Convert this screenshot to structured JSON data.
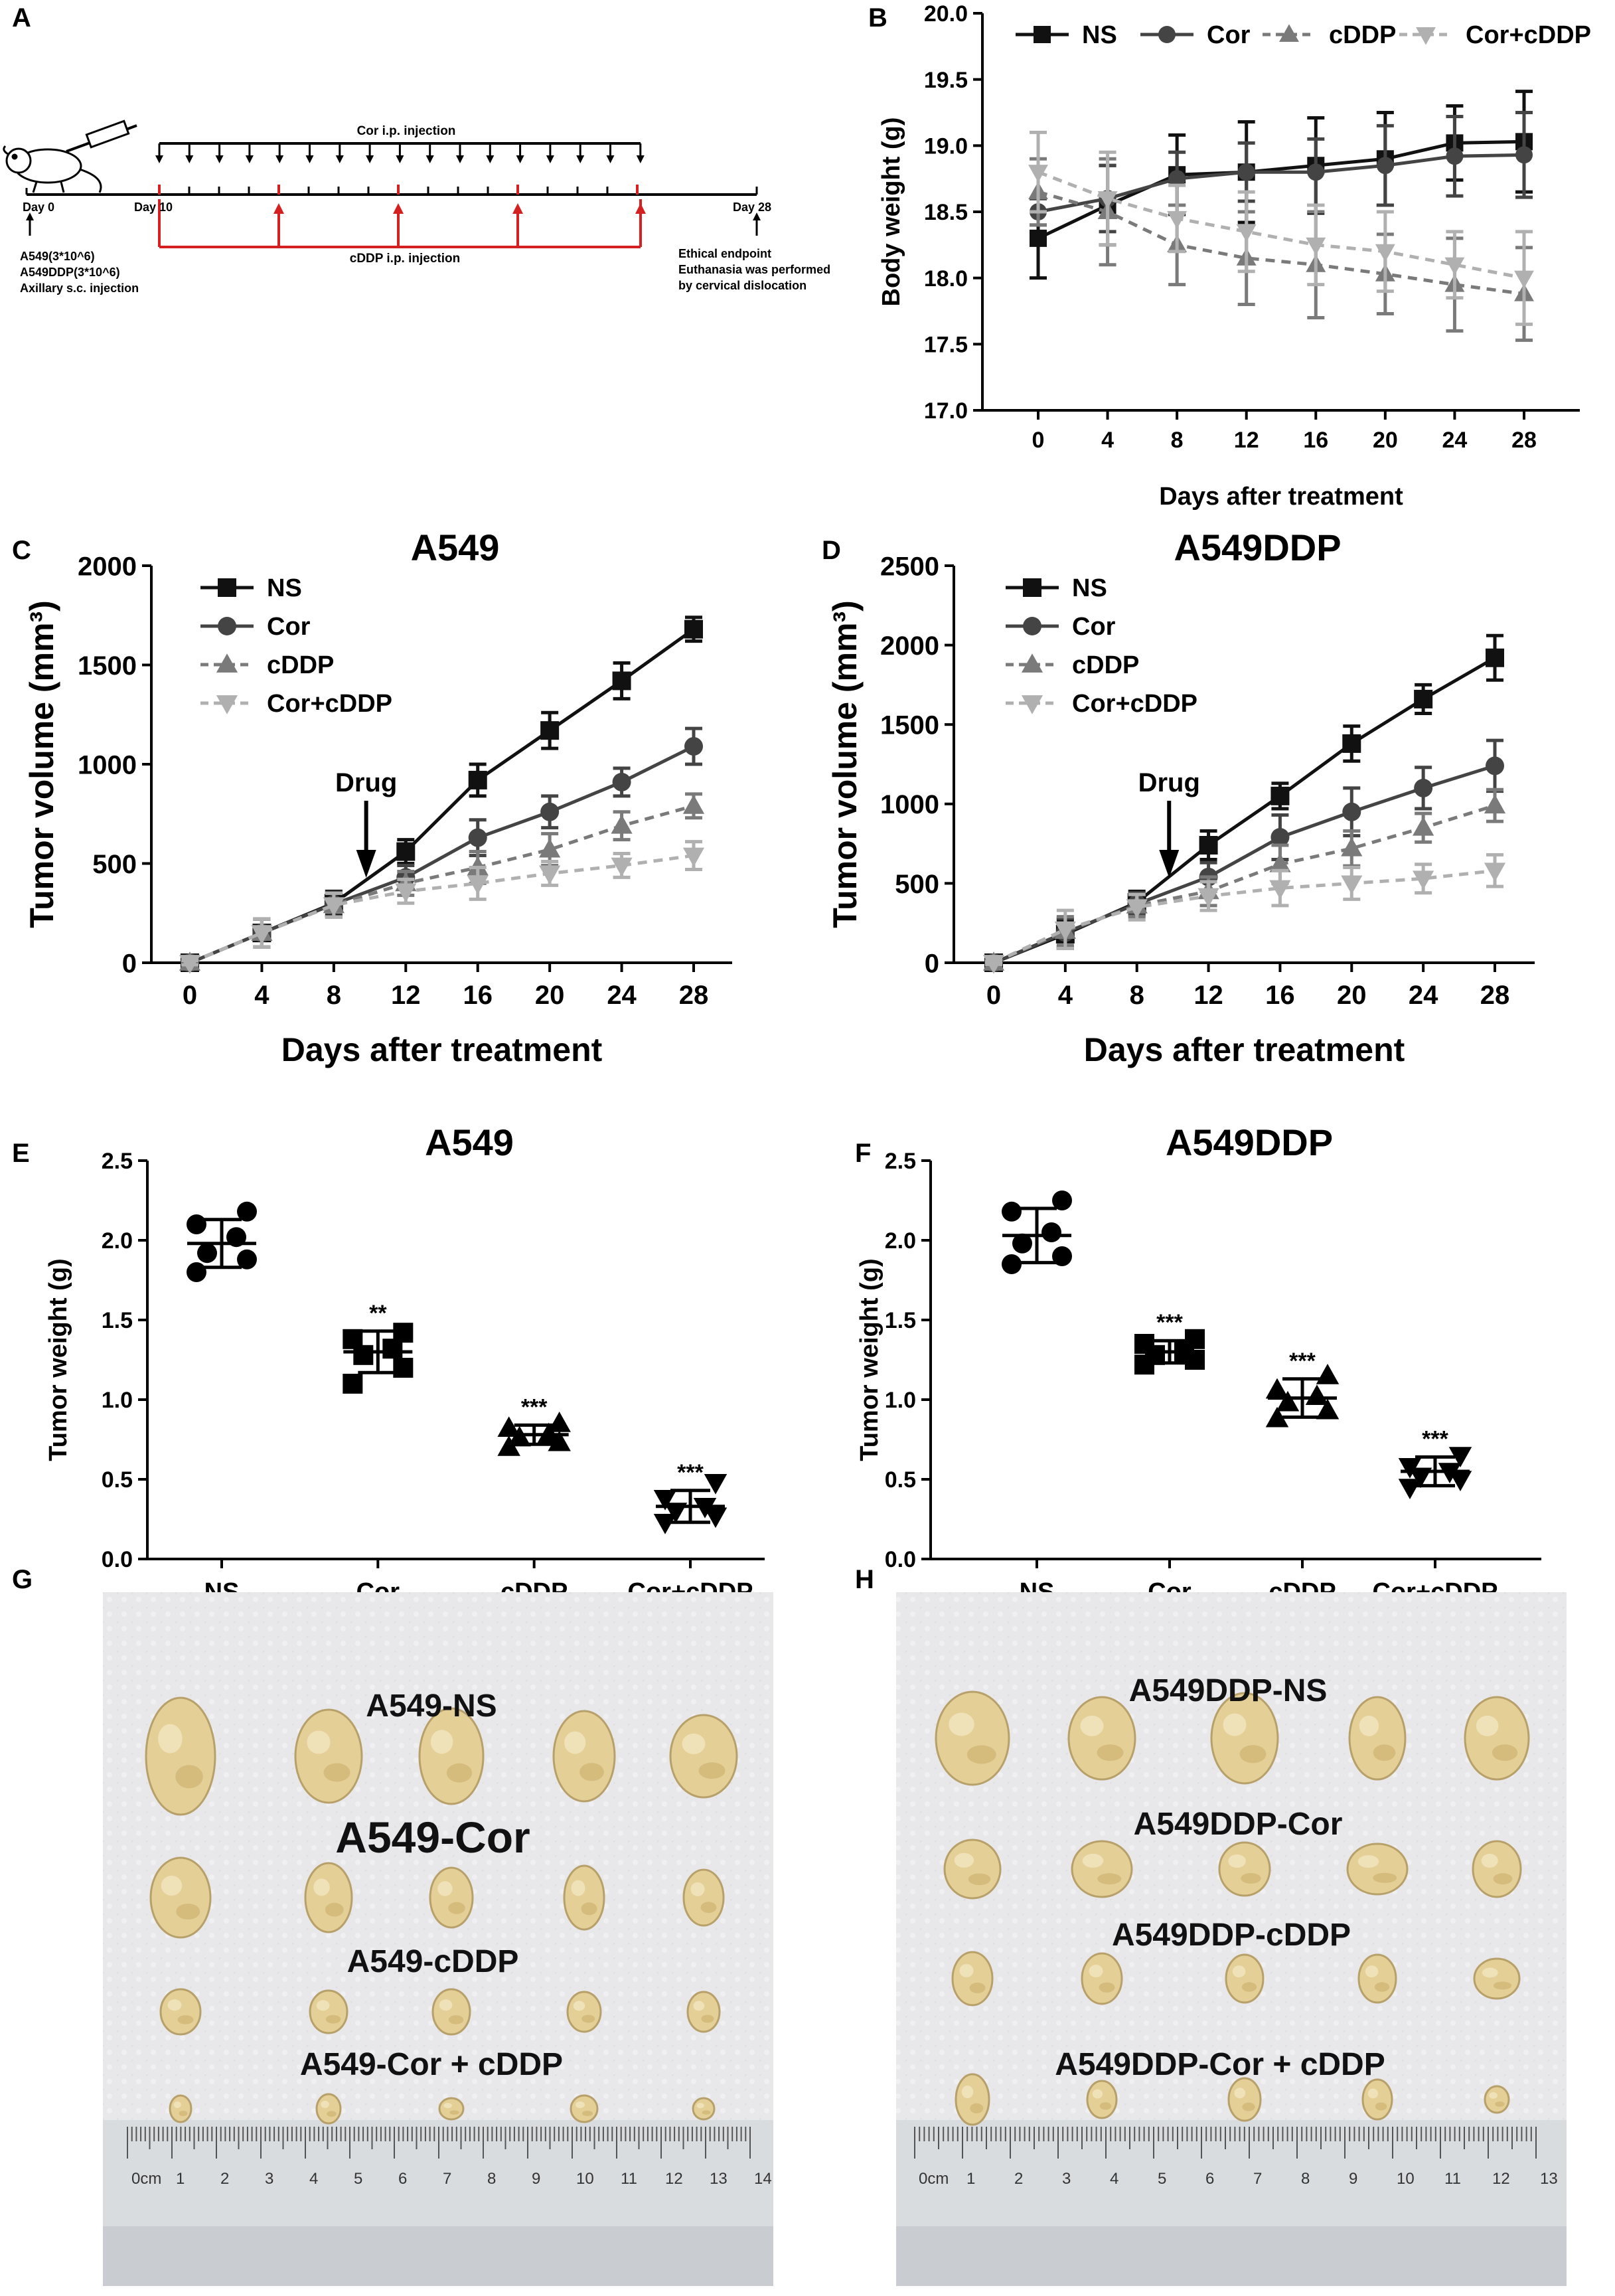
{
  "panels": {
    "A": {
      "label": "A",
      "cor_injection": "Cor i.p. injection",
      "cddp_injection": "cDDP i.p. injection",
      "day0": "Day 0",
      "day10": "Day 10",
      "day28": "Day 28",
      "inoculation": [
        "A549(3*10^6)",
        "A549DDP(3*10^6)",
        "Axillary s.c. injection"
      ],
      "endpoint": [
        "Ethical endpoint",
        "Euthanasia was performed",
        "by cervical dislocation"
      ]
    },
    "B": {
      "label": "B"
    },
    "C": {
      "label": "C"
    },
    "D": {
      "label": "D"
    },
    "E": {
      "label": "E"
    },
    "F": {
      "label": "F"
    },
    "G": {
      "label": "G"
    },
    "H": {
      "label": "H"
    }
  },
  "photos": {
    "G": {
      "row_labels": [
        "A549-NS",
        "A549-Cor",
        "A549-cDDP",
        "A549-Cor + cDDP"
      ],
      "ruler_ticks": [
        "0cm",
        "1",
        "2",
        "3",
        "4",
        "5",
        "6",
        "7",
        "8",
        "9",
        "10",
        "11",
        "12",
        "13",
        "14"
      ]
    },
    "H": {
      "row_labels": [
        "A549DDP-NS",
        "A549DDP-Cor",
        "A549DDP-cDDP",
        "A549DDP-Cor + cDDP"
      ],
      "ruler_ticks": [
        "0cm",
        "1",
        "2",
        "3",
        "4",
        "5",
        "6",
        "7",
        "8",
        "9",
        "10",
        "11",
        "12",
        "13"
      ]
    }
  },
  "colors": {
    "NS": "#111111",
    "Cor": "#444444",
    "cDDP": "#7a7a7a",
    "Cor+cDDP": "#b0b0b0",
    "timeline_black": "#000000",
    "timeline_red": "#d42020",
    "photo_bg": "#e9e9ec",
    "tumor": "#e4cf96"
  },
  "chart_data": [
    {
      "id": "B",
      "type": "line",
      "title": "",
      "xlabel": "Days after treatment",
      "ylabel": "Body weight (g)",
      "x": [
        0,
        4,
        8,
        12,
        16,
        20,
        24,
        28
      ],
      "ylim": [
        17.0,
        20.0
      ],
      "yticks": [
        17.0,
        17.5,
        18.0,
        18.5,
        19.0,
        19.5,
        20.0
      ],
      "ytick_labels": [
        "17.0",
        "17.5",
        "18.0",
        "18.5",
        "19.0",
        "19.5",
        "20.0"
      ],
      "legend": [
        "NS",
        "Cor",
        "cDDP",
        "Cor+cDDP"
      ],
      "legend_position": "top",
      "series": [
        {
          "name": "NS",
          "values": [
            18.3,
            18.55,
            18.78,
            18.8,
            18.85,
            18.9,
            19.02,
            19.03
          ],
          "errors": [
            0.3,
            0.3,
            0.3,
            0.38,
            0.36,
            0.35,
            0.28,
            0.38
          ]
        },
        {
          "name": "Cor",
          "values": [
            18.5,
            18.6,
            18.75,
            18.8,
            18.8,
            18.85,
            18.92,
            18.93
          ],
          "errors": [
            0.1,
            0.25,
            0.2,
            0.22,
            0.25,
            0.3,
            0.3,
            0.32
          ]
        },
        {
          "name": "cDDP",
          "values": [
            18.65,
            18.5,
            18.25,
            18.15,
            18.1,
            18.03,
            17.95,
            17.88
          ],
          "errors": [
            0.25,
            0.4,
            0.3,
            0.35,
            0.4,
            0.3,
            0.35,
            0.35
          ]
        },
        {
          "name": "Cor+cDDP",
          "values": [
            18.8,
            18.6,
            18.45,
            18.35,
            18.25,
            18.2,
            18.1,
            18.0
          ],
          "errors": [
            0.3,
            0.35,
            0.25,
            0.3,
            0.3,
            0.3,
            0.25,
            0.35
          ]
        }
      ]
    },
    {
      "id": "C",
      "type": "line",
      "title": "A549",
      "xlabel": "Days after treatment",
      "ylabel": "Tumor volume (mm³)",
      "x": [
        0,
        4,
        8,
        12,
        16,
        20,
        24,
        28
      ],
      "ylim": [
        0,
        2000
      ],
      "yticks": [
        0,
        500,
        1000,
        1500,
        2000
      ],
      "ytick_labels": [
        "0",
        "500",
        "1000",
        "1500",
        "2000"
      ],
      "annotation": "Drug",
      "annotation_x": 9.8,
      "legend": [
        "NS",
        "Cor",
        "cDDP",
        "Cor+cDDP"
      ],
      "legend_position": "top-left",
      "series": [
        {
          "name": "NS",
          "values": [
            0,
            150,
            300,
            560,
            920,
            1170,
            1420,
            1680
          ],
          "errors": [
            10,
            70,
            60,
            60,
            80,
            90,
            90,
            60
          ]
        },
        {
          "name": "Cor",
          "values": [
            0,
            150,
            295,
            430,
            630,
            760,
            910,
            1090
          ],
          "errors": [
            10,
            70,
            60,
            60,
            90,
            80,
            70,
            90
          ]
        },
        {
          "name": "cDDP",
          "values": [
            0,
            150,
            290,
            400,
            480,
            570,
            690,
            790
          ],
          "errors": [
            10,
            70,
            60,
            60,
            80,
            80,
            70,
            60
          ]
        },
        {
          "name": "Cor+cDDP",
          "values": [
            0,
            150,
            290,
            360,
            400,
            450,
            490,
            540
          ],
          "errors": [
            10,
            70,
            60,
            60,
            80,
            60,
            60,
            70
          ]
        }
      ]
    },
    {
      "id": "D",
      "type": "line",
      "title": "A549DDP",
      "xlabel": "Days after treatment",
      "ylabel": "Tumor volume (mm³)",
      "x": [
        0,
        4,
        8,
        12,
        16,
        20,
        24,
        28
      ],
      "ylim": [
        0,
        2500
      ],
      "yticks": [
        0,
        500,
        1000,
        1500,
        2000,
        2500
      ],
      "ytick_labels": [
        "0",
        "500",
        "1000",
        "1500",
        "2000",
        "2500"
      ],
      "annotation": "Drug",
      "annotation_x": 9.8,
      "legend": [
        "NS",
        "Cor",
        "cDDP",
        "Cor+cDDP"
      ],
      "legend_position": "top-left",
      "series": [
        {
          "name": "NS",
          "values": [
            0,
            180,
            380,
            740,
            1050,
            1380,
            1660,
            1920
          ],
          "errors": [
            10,
            90,
            70,
            90,
            80,
            110,
            90,
            140
          ]
        },
        {
          "name": "Cor",
          "values": [
            0,
            190,
            370,
            540,
            790,
            950,
            1100,
            1240
          ],
          "errors": [
            10,
            90,
            70,
            90,
            140,
            150,
            130,
            160
          ]
        },
        {
          "name": "cDDP",
          "values": [
            0,
            200,
            360,
            450,
            620,
            720,
            850,
            990
          ],
          "errors": [
            10,
            90,
            70,
            90,
            120,
            110,
            90,
            100
          ]
        },
        {
          "name": "Cor+cDDP",
          "values": [
            0,
            210,
            350,
            420,
            470,
            500,
            530,
            580
          ],
          "errors": [
            10,
            120,
            80,
            90,
            110,
            100,
            90,
            100
          ]
        }
      ]
    },
    {
      "id": "E",
      "type": "scatter",
      "title": "A549",
      "xlabel": "",
      "ylabel": "Tumor weight (g)",
      "categories": [
        "NS",
        "Cor",
        "cDDP",
        "Cor+cDDP"
      ],
      "ylim": [
        0.0,
        2.5
      ],
      "yticks": [
        0.0,
        0.5,
        1.0,
        1.5,
        2.0,
        2.5
      ],
      "ytick_labels": [
        "0.0",
        "0.5",
        "1.0",
        "1.5",
        "2.0",
        "2.5"
      ],
      "groups": [
        {
          "name": "NS",
          "marker": "circle",
          "points": [
            1.8,
            1.88,
            1.92,
            2.02,
            2.1,
            2.18
          ],
          "mean": 1.98,
          "sd": 0.15,
          "sig": ""
        },
        {
          "name": "Cor",
          "marker": "square",
          "points": [
            1.1,
            1.2,
            1.28,
            1.32,
            1.38,
            1.42
          ],
          "mean": 1.3,
          "sd": 0.13,
          "sig": "**"
        },
        {
          "name": "cDDP",
          "marker": "triangle",
          "points": [
            0.7,
            0.73,
            0.76,
            0.78,
            0.82,
            0.85
          ],
          "mean": 0.78,
          "sd": 0.06,
          "sig": "***"
        },
        {
          "name": "Cor+cDDP",
          "marker": "triangle-down",
          "points": [
            0.23,
            0.27,
            0.3,
            0.33,
            0.38,
            0.48
          ],
          "mean": 0.33,
          "sd": 0.1,
          "sig": "***"
        }
      ]
    },
    {
      "id": "F",
      "type": "scatter",
      "title": "A549DDP",
      "xlabel": "",
      "ylabel": "Tumor weight (g)",
      "categories": [
        "NS",
        "Cor",
        "cDDP",
        "Cor+cDDP"
      ],
      "ylim": [
        0.0,
        2.5
      ],
      "yticks": [
        0.0,
        0.5,
        1.0,
        1.5,
        2.0,
        2.5
      ],
      "ytick_labels": [
        "0.0",
        "0.5",
        "1.0",
        "1.5",
        "2.0",
        "2.5"
      ],
      "groups": [
        {
          "name": "NS",
          "marker": "circle",
          "points": [
            1.85,
            1.9,
            1.98,
            2.05,
            2.18,
            2.25
          ],
          "mean": 2.03,
          "sd": 0.17,
          "sig": ""
        },
        {
          "name": "Cor",
          "marker": "square",
          "points": [
            1.22,
            1.25,
            1.28,
            1.3,
            1.35,
            1.38
          ],
          "mean": 1.3,
          "sd": 0.07,
          "sig": "***"
        },
        {
          "name": "cDDP",
          "marker": "triangle",
          "points": [
            0.88,
            0.93,
            0.98,
            1.02,
            1.06,
            1.15
          ],
          "mean": 1.01,
          "sd": 0.12,
          "sig": "***"
        },
        {
          "name": "Cor+cDDP",
          "marker": "triangle-down",
          "points": [
            0.45,
            0.5,
            0.52,
            0.55,
            0.58,
            0.65
          ],
          "mean": 0.55,
          "sd": 0.09,
          "sig": "***"
        }
      ]
    }
  ]
}
